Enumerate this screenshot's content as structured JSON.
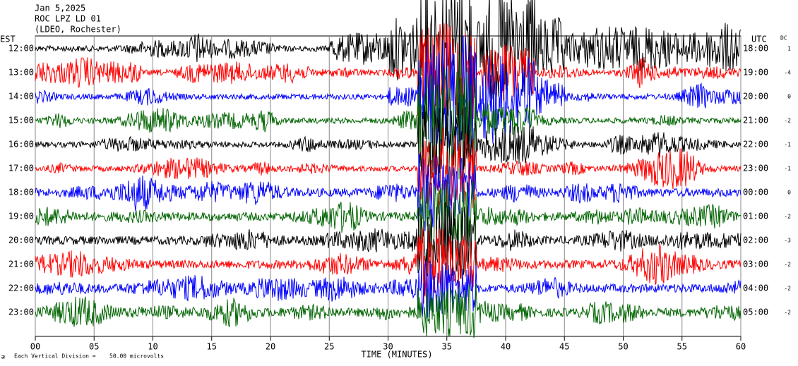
{
  "header": {
    "date": "Jan 5,2025",
    "station": "ROC LPZ LD 01",
    "network": "(LDEO, Rochester)"
  },
  "left_unit": "EST",
  "right_unit": "UTC",
  "dc_label": "DC",
  "rows": [
    {
      "est": "12:00",
      "utc": "18:00",
      "dc": 1,
      "color": "#000000"
    },
    {
      "est": "13:00",
      "utc": "19:00",
      "dc": -4,
      "color": "#ff0000"
    },
    {
      "est": "14:00",
      "utc": "20:00",
      "dc": 0,
      "color": "#0000ff"
    },
    {
      "est": "15:00",
      "utc": "21:00",
      "dc": -2,
      "color": "#006400"
    },
    {
      "est": "16:00",
      "utc": "22:00",
      "dc": -1,
      "color": "#000000"
    },
    {
      "est": "17:00",
      "utc": "23:00",
      "dc": -1,
      "color": "#ff0000"
    },
    {
      "est": "18:00",
      "utc": "00:00",
      "dc": 0,
      "color": "#0000ff"
    },
    {
      "est": "19:00",
      "utc": "01:00",
      "dc": -2,
      "color": "#006400"
    },
    {
      "est": "20:00",
      "utc": "02:00",
      "dc": -3,
      "color": "#000000"
    },
    {
      "est": "21:00",
      "utc": "03:00",
      "dc": -2,
      "color": "#ff0000"
    },
    {
      "est": "22:00",
      "utc": "04:00",
      "dc": -2,
      "color": "#0000ff"
    },
    {
      "est": "23:00",
      "utc": "05:00",
      "dc": -2,
      "color": "#006400"
    }
  ],
  "x_axis": {
    "label": "TIME (MINUTES)",
    "xlim": [
      0,
      60
    ],
    "xticks": [
      {
        "value": 0,
        "label": "00"
      },
      {
        "value": 5,
        "label": "05"
      },
      10,
      15,
      20,
      25,
      30,
      35,
      40,
      45,
      50,
      55,
      60
    ]
  },
  "footer": {
    "icon": "æ",
    "scale": "Each Vertical Division =",
    "value": "50.00 microvolts"
  }
}
